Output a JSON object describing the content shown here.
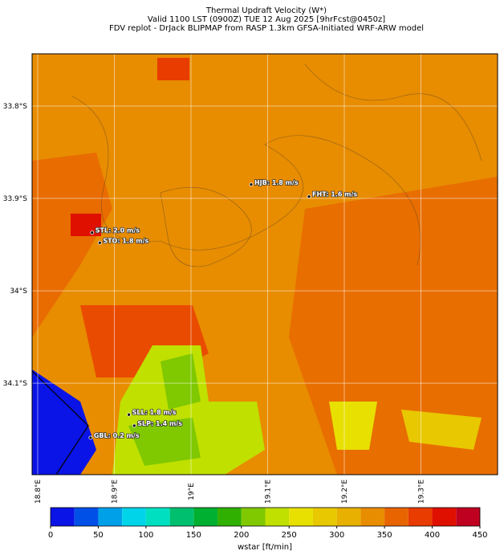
{
  "map": {
    "title": [
      "Thermal Updraft Velocity (W*)",
      "Valid 1100 LST (0900Z) TUE 12 Aug 2025 [9hrFcst@0450z]",
      "FDV replot - DrJack BLIPMAP from RASP 1.3km GFSA-Initiated WRF-ARW model"
    ],
    "xlim": [
      18.7927,
      19.4
    ],
    "ylim": [
      -34.199,
      -33.7435
    ],
    "xticks": [
      {
        "value": 18.8,
        "label": "18.8°E"
      },
      {
        "value": 18.9,
        "label": "18.9°E"
      },
      {
        "value": 19.0,
        "label": "19°E"
      },
      {
        "value": 19.1,
        "label": "19.1°E"
      },
      {
        "value": 19.2,
        "label": "19.2°E"
      },
      {
        "value": 19.3,
        "label": "19.3°E"
      }
    ],
    "yticks": [
      {
        "value": -33.8,
        "label": "33.8°S"
      },
      {
        "value": -33.9,
        "label": "33.9°S"
      },
      {
        "value": -34.0,
        "label": "34°S"
      },
      {
        "value": -34.1,
        "label": "34.1°S"
      }
    ],
    "stations": [
      {
        "label": "HJB: 1.8 m/s",
        "lon": 19.0785,
        "lat": -33.885
      },
      {
        "label": "FHT: 1.6 m/s",
        "lon": 19.154,
        "lat": -33.898
      },
      {
        "label": "STL: 2.0 m/s",
        "lon": 18.871,
        "lat": -33.937
      },
      {
        "label": "STO: 1.8 m/s",
        "lon": 18.881,
        "lat": -33.948
      },
      {
        "label": "SLL: 1.8 m/s",
        "lon": 18.919,
        "lat": -34.134
      },
      {
        "label": "SLP: 1.4 m/s",
        "lon": 18.926,
        "lat": -34.146
      },
      {
        "label": "GBL: 0.2 m/s",
        "lon": 18.869,
        "lat": -34.159
      }
    ],
    "colorbar": {
      "label": "wstar [ft/min]",
      "bounds": [
        0,
        25,
        50,
        75,
        100,
        125,
        150,
        175,
        200,
        225,
        250,
        275,
        300,
        325,
        350,
        375,
        400,
        425,
        450
      ],
      "colors": [
        "#0a14e6",
        "#0050e8",
        "#00a0e8",
        "#00d4e8",
        "#00e0c0",
        "#00c070",
        "#00b030",
        "#30b000",
        "#80c800",
        "#c0e000",
        "#e8e000",
        "#e8c800",
        "#e8b000",
        "#e88c00",
        "#e86400",
        "#e83c00",
        "#e01000",
        "#c00020"
      ],
      "ticks": [
        0,
        50,
        100,
        150,
        200,
        250,
        300,
        350,
        400,
        450
      ]
    }
  }
}
